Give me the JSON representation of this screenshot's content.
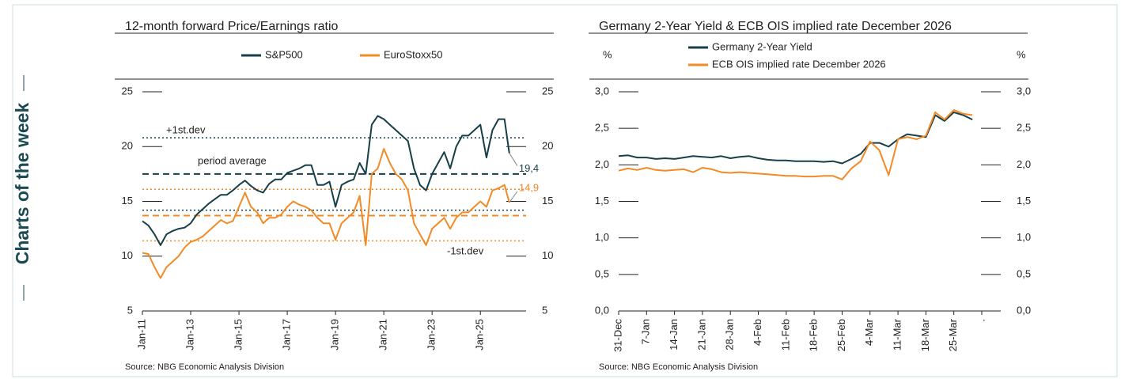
{
  "sidebar": "Charts of the week",
  "chart_data": [
    {
      "type": "line",
      "title": "12-month forward Price/Earnings ratio",
      "source": "Source: NBG Economic Analysis Division",
      "x": [
        2011,
        2011.25,
        2011.5,
        2011.75,
        2012,
        2012.25,
        2012.5,
        2012.75,
        2013,
        2013.25,
        2013.5,
        2013.75,
        2014,
        2014.25,
        2014.5,
        2014.75,
        2015,
        2015.25,
        2015.5,
        2015.75,
        2016,
        2016.25,
        2016.5,
        2016.75,
        2017,
        2017.25,
        2017.5,
        2017.75,
        2018,
        2018.25,
        2018.5,
        2018.75,
        2019,
        2019.25,
        2019.5,
        2019.75,
        2020,
        2020.25,
        2020.5,
        2020.75,
        2021,
        2021.25,
        2021.5,
        2021.75,
        2022,
        2022.25,
        2022.5,
        2022.75,
        2023,
        2023.25,
        2023.5,
        2023.75,
        2024,
        2024.25,
        2024.5,
        2024.75,
        2025,
        2025.25,
        2025.5,
        2025.75,
        2026,
        2026.2
      ],
      "series": [
        {
          "name": "S&P500",
          "color": "#173f47",
          "end_label": "19,4",
          "values": [
            13.2,
            12.8,
            12.0,
            11.0,
            12.0,
            12.3,
            12.5,
            12.6,
            13.0,
            13.8,
            14.3,
            14.8,
            15.2,
            15.6,
            15.6,
            16.0,
            16.5,
            16.9,
            16.4,
            16.0,
            15.8,
            16.6,
            17.0,
            17.0,
            17.6,
            17.8,
            18.0,
            18.3,
            18.3,
            16.5,
            16.5,
            16.8,
            14.5,
            16.5,
            16.8,
            17.0,
            18.5,
            17.5,
            22.0,
            22.8,
            22.5,
            22.0,
            21.5,
            21.0,
            20.5,
            18.0,
            16.5,
            16.0,
            17.5,
            18.5,
            19.5,
            18.0,
            20.0,
            21.0,
            21.0,
            21.5,
            22.0,
            19.0,
            21.5,
            22.5,
            22.5,
            19.4
          ]
        },
        {
          "name": "EuroStoxx50",
          "color": "#f28a25",
          "end_label": "14,9",
          "values": [
            10.3,
            10.2,
            9.0,
            8.0,
            9.0,
            9.5,
            10.0,
            10.8,
            11.3,
            11.5,
            11.8,
            12.3,
            12.8,
            13.3,
            13.0,
            13.2,
            14.5,
            15.8,
            14.5,
            14.0,
            13.0,
            13.5,
            13.5,
            13.8,
            14.5,
            15.0,
            14.7,
            14.5,
            14.2,
            13.5,
            13.0,
            13.0,
            11.5,
            13.0,
            13.5,
            14.0,
            15.5,
            11.0,
            17.5,
            18.0,
            19.8,
            18.5,
            17.5,
            17.0,
            16.0,
            13.0,
            12.0,
            11.0,
            12.5,
            13.0,
            13.5,
            12.5,
            13.5,
            14.0,
            14.0,
            14.5,
            15.0,
            14.5,
            16.0,
            16.2,
            16.5,
            14.9
          ]
        }
      ],
      "reference_lines": [
        {
          "value": 20.8,
          "color": "#173f47",
          "dash": "2 3"
        },
        {
          "value": 17.5,
          "color": "#173f47",
          "dash": "8 5"
        },
        {
          "value": 14.2,
          "color": "#173f47",
          "dash": "2 3"
        },
        {
          "value": 16.1,
          "color": "#f28a25",
          "dash": "2 3"
        },
        {
          "value": 13.7,
          "color": "#f28a25",
          "dash": "8 5"
        },
        {
          "value": 11.4,
          "color": "#f28a25",
          "dash": "2 3"
        }
      ],
      "annotations": [
        "+1st.dev",
        "period average",
        "-1st.dev"
      ],
      "xlim": [
        2011,
        2026.5
      ],
      "xticks": [
        {
          "value": 2011,
          "label": "Jan-11"
        },
        {
          "value": 2013,
          "label": "Jan-13"
        },
        {
          "value": 2015,
          "label": "Jan-15"
        },
        {
          "value": 2017,
          "label": "Jan-17"
        },
        {
          "value": 2019,
          "label": "Jan-19"
        },
        {
          "value": 2021,
          "label": "Jan-21"
        },
        {
          "value": 2023,
          "label": "Jan-23"
        },
        {
          "value": 2025,
          "label": "Jan-25"
        }
      ],
      "ylim": [
        5,
        25
      ],
      "yticks": [
        5,
        10,
        15,
        20,
        25
      ]
    },
    {
      "type": "line",
      "title": "Germany 2-Year Yield & ECB OIS implied rate December 2026",
      "source": "Source: NBG Economic Analysis Division",
      "y_label": "%",
      "y2_label": "%",
      "categories": [
        "31-Dec",
        null,
        null,
        "7-Jan",
        null,
        null,
        "14-Jan",
        null,
        null,
        "21-Jan",
        null,
        null,
        "28-Jan",
        null,
        null,
        "4-Feb",
        null,
        null,
        "11-Feb",
        null,
        null,
        "18-Feb",
        null,
        null,
        "25-Feb",
        null,
        null,
        "4-Mar",
        null,
        null,
        "11-Mar",
        null,
        null,
        "18-Mar",
        null,
        null,
        "25-Mar",
        null,
        null,
        "."
      ],
      "series": [
        {
          "name": "Germany 2-Year Yield",
          "color": "#173f47",
          "values": [
            2.12,
            2.13,
            2.1,
            2.1,
            2.08,
            2.09,
            2.08,
            2.1,
            2.12,
            2.11,
            2.1,
            2.12,
            2.09,
            2.11,
            2.12,
            2.09,
            2.07,
            2.06,
            2.06,
            2.05,
            2.05,
            2.05,
            2.04,
            2.05,
            2.02,
            2.08,
            2.15,
            2.3,
            2.3,
            2.25,
            2.35,
            2.42,
            2.4,
            2.38,
            2.68,
            2.6,
            2.72,
            2.68,
            2.62,
            null
          ]
        },
        {
          "name": "ECB OIS implied rate December 2026",
          "color": "#f28a25",
          "values": [
            1.92,
            1.95,
            1.93,
            1.96,
            1.93,
            1.92,
            1.93,
            1.94,
            1.9,
            1.96,
            1.94,
            1.9,
            1.89,
            1.9,
            1.89,
            1.88,
            1.87,
            1.86,
            1.85,
            1.85,
            1.84,
            1.84,
            1.85,
            1.85,
            1.8,
            1.95,
            2.05,
            2.32,
            2.2,
            1.86,
            2.35,
            2.38,
            2.35,
            2.4,
            2.72,
            2.62,
            2.75,
            2.7,
            2.68,
            null
          ]
        }
      ],
      "ylim": [
        0,
        3
      ],
      "yticks": [
        {
          "value": 0,
          "label": "0,0"
        },
        {
          "value": 0.5,
          "label": "0,5"
        },
        {
          "value": 1,
          "label": "1,0"
        },
        {
          "value": 1.5,
          "label": "1,5"
        },
        {
          "value": 2,
          "label": "2,0"
        },
        {
          "value": 2.5,
          "label": "2,5"
        },
        {
          "value": 3,
          "label": "3,0"
        }
      ]
    }
  ]
}
